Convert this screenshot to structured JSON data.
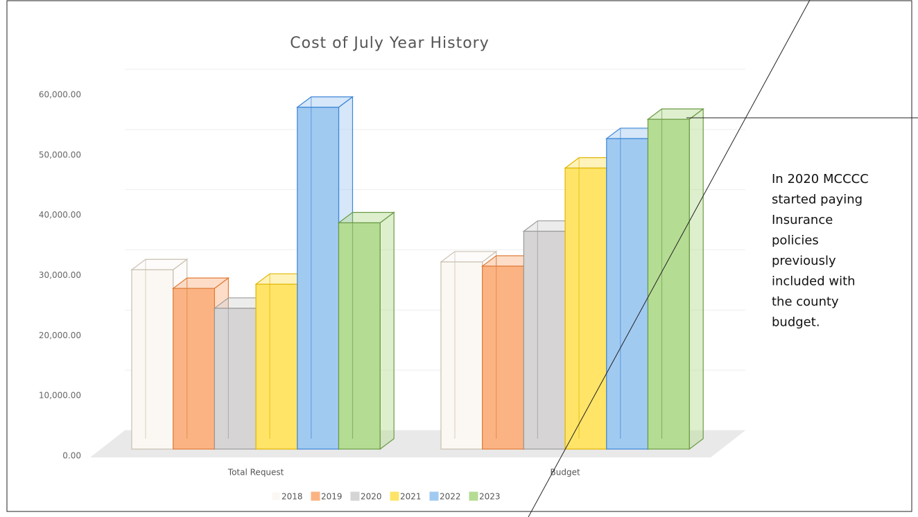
{
  "chart_data": {
    "type": "bar3d",
    "title": "Cost of July Year History",
    "categories": [
      "Total Request",
      "Budget"
    ],
    "series": [
      {
        "name": "2018",
        "color": "#fbf8f3",
        "stroke": "#c9bfb0",
        "values": [
          29800,
          31100
        ]
      },
      {
        "name": "2019",
        "color": "#fbb383",
        "stroke": "#e07b39",
        "values": [
          26700,
          30400
        ]
      },
      {
        "name": "2020",
        "color": "#d6d4d4",
        "stroke": "#9a9a9a",
        "values": [
          23400,
          36200
        ]
      },
      {
        "name": "2021",
        "color": "#ffe468",
        "stroke": "#e0b400",
        "values": [
          27400,
          46700
        ]
      },
      {
        "name": "2022",
        "color": "#a1caf1",
        "stroke": "#3d85d6",
        "values": [
          56800,
          51600
        ]
      },
      {
        "name": "2023",
        "color": "#b5dc93",
        "stroke": "#6a9a45",
        "values": [
          37600,
          54800
        ]
      }
    ],
    "ylim": [
      0,
      60000
    ],
    "yticks": [
      {
        "value": 0,
        "label": "0.00"
      },
      {
        "value": 10000,
        "label": "10,000.00"
      },
      {
        "value": 20000,
        "label": "20,000.00"
      },
      {
        "value": 30000,
        "label": "30,000.00"
      },
      {
        "value": 40000,
        "label": "40,000.00"
      },
      {
        "value": 50000,
        "label": "50,000.00"
      },
      {
        "value": 60000,
        "label": "60,000.00"
      }
    ],
    "grid": true,
    "annotation": [
      "In 2020 MCCCC",
      "started paying",
      "Insurance",
      "policies",
      "previously",
      "included with",
      "the county",
      "budget."
    ]
  }
}
